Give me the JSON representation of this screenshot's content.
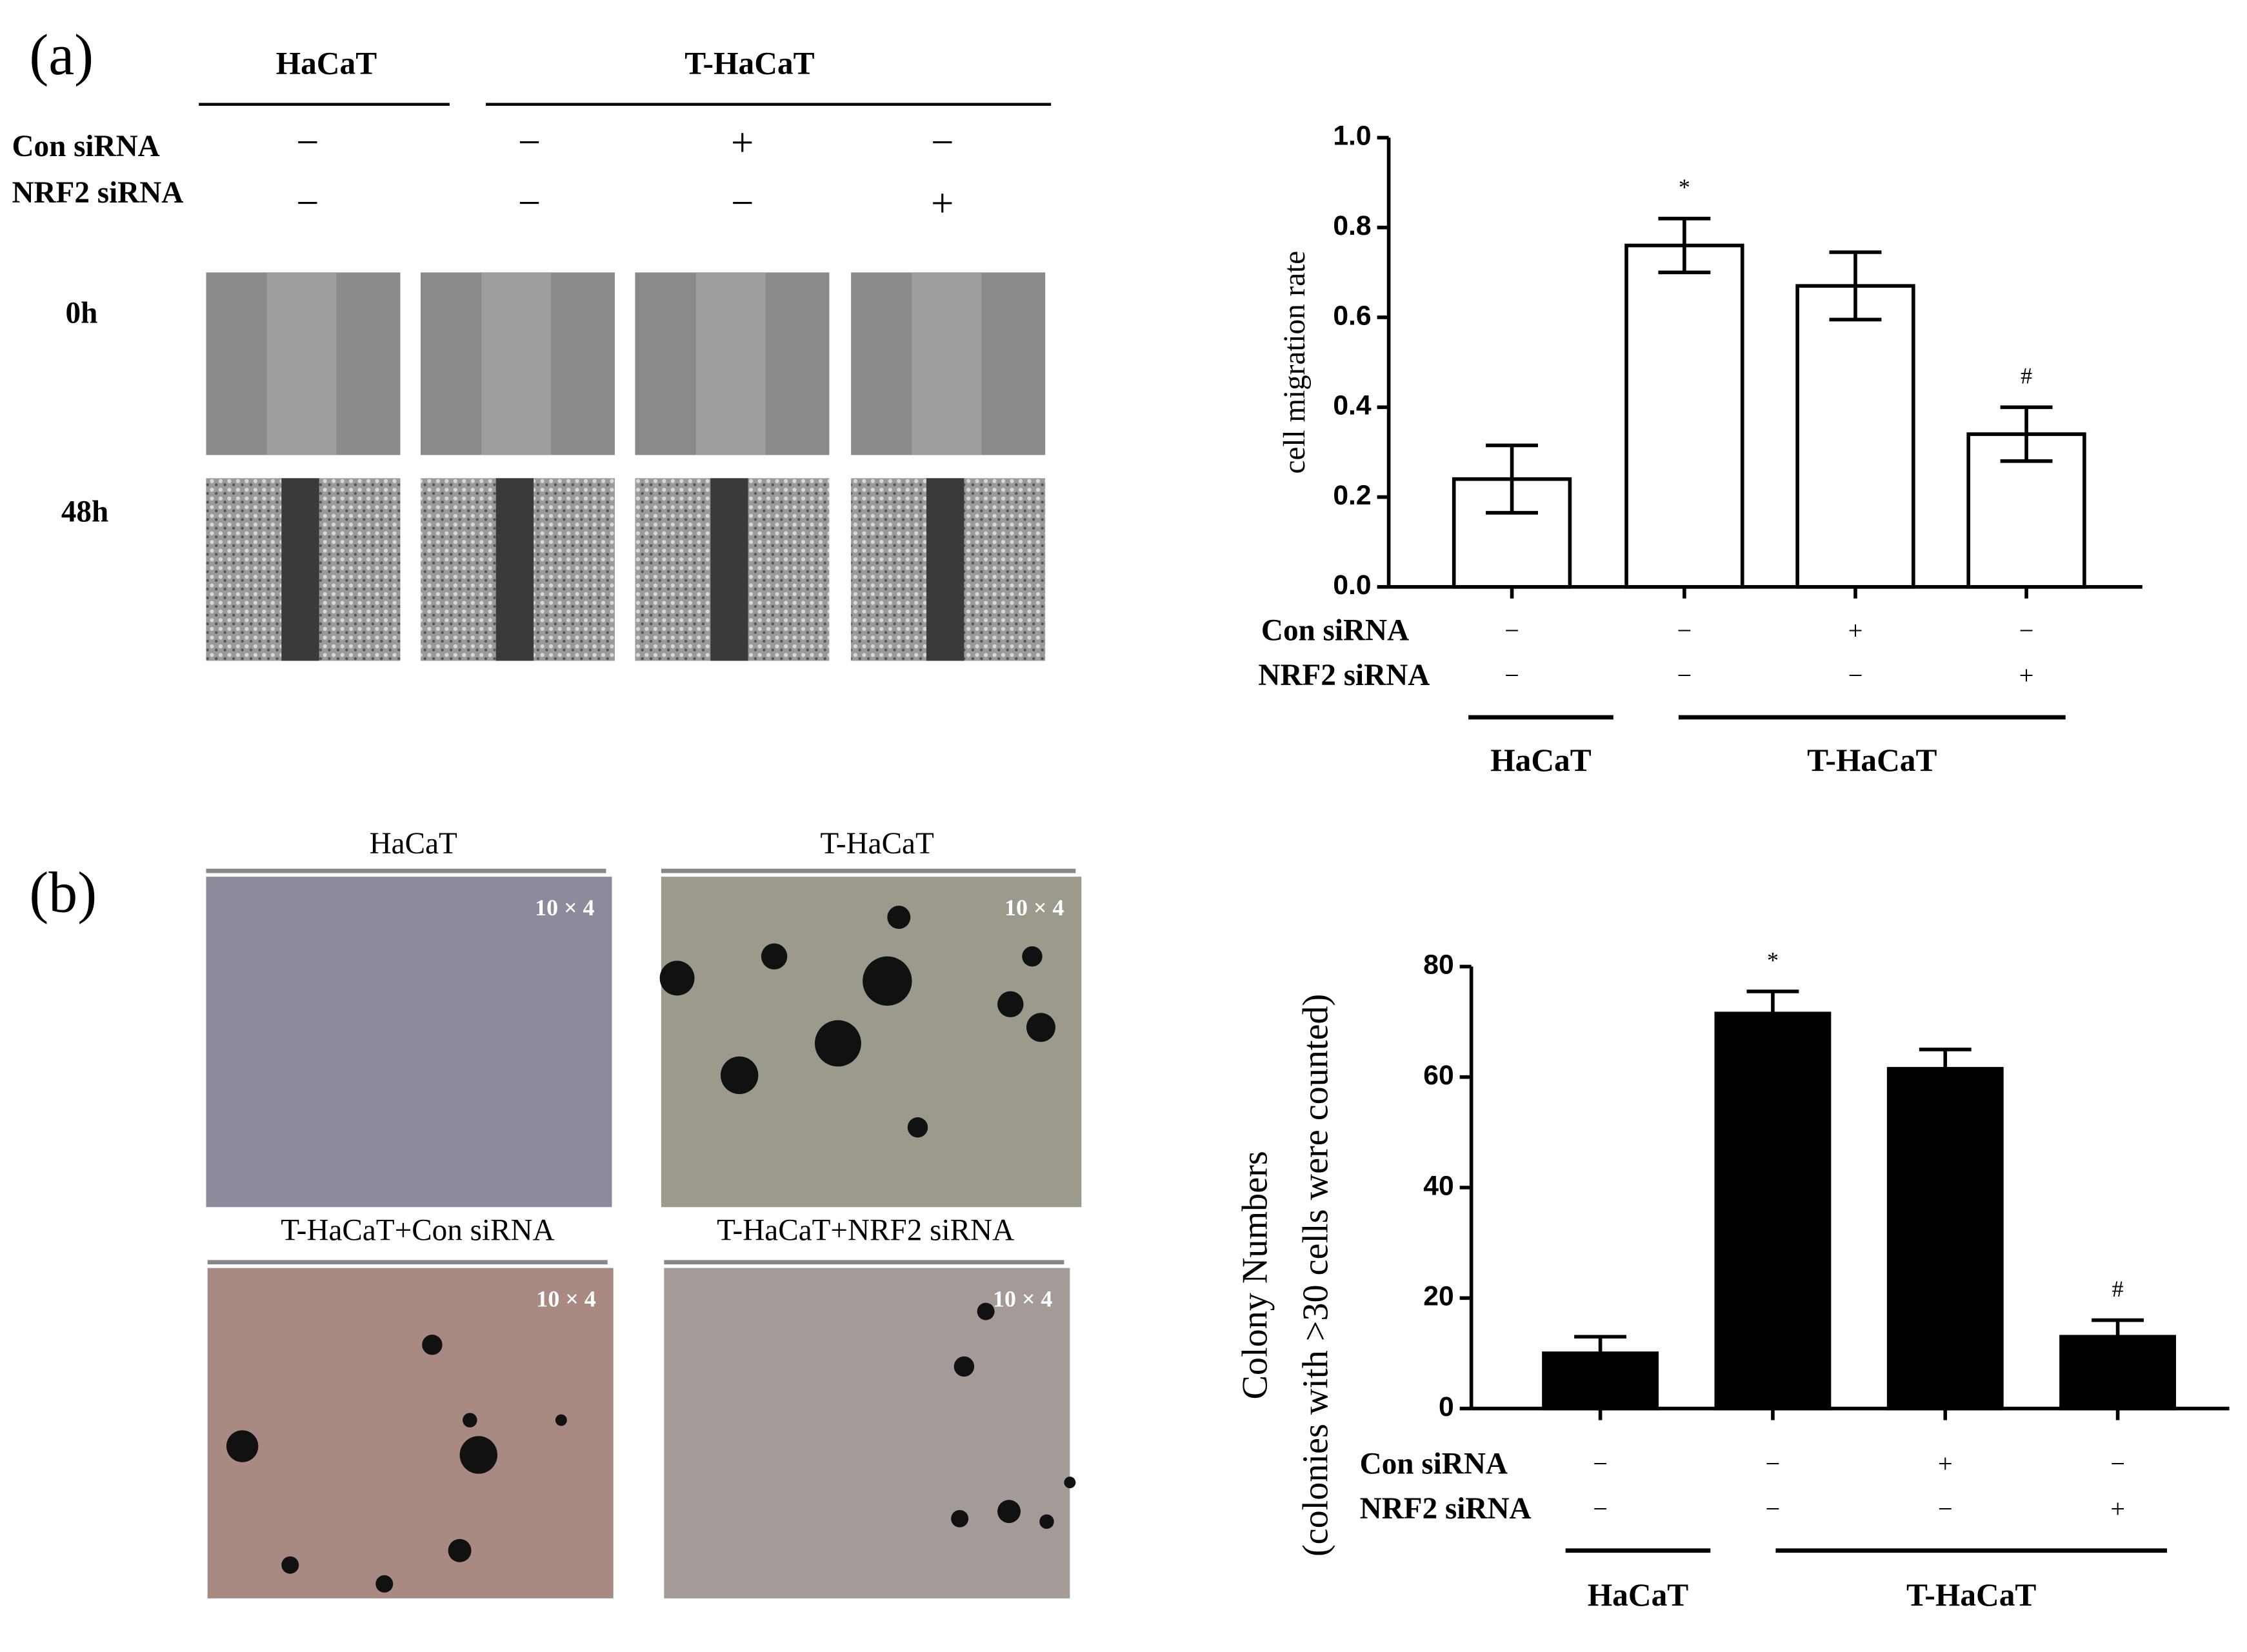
{
  "panels": {
    "a": {
      "label": "(a)",
      "groups": [
        "HaCaT",
        "T-HaCaT"
      ],
      "conditions": [
        {
          "name": "Con siRNA",
          "signs": [
            "−",
            "−",
            "+",
            "−"
          ]
        },
        {
          "name": "NRF2 siRNA",
          "signs": [
            "−",
            "−",
            "−",
            "+"
          ]
        }
      ],
      "times": [
        "0h",
        "48h"
      ]
    },
    "b": {
      "label": "(b)",
      "image_titles": [
        "HaCaT",
        "T-HaCaT",
        "T-HaCaT+Con siRNA",
        "T-HaCaT+NRF2 siRNA"
      ],
      "magnification": "10 × 4"
    }
  },
  "chart_data": [
    {
      "type": "bar",
      "y_label": "cell migration rate",
      "categories": [
        null,
        null,
        null,
        null
      ],
      "values": [
        0.24,
        0.76,
        0.67,
        0.34
      ],
      "errors": [
        0.075,
        0.06,
        0.075,
        0.06
      ],
      "annotations": [
        null,
        "*",
        null,
        "#"
      ],
      "color": "#ffffff",
      "edge_color": "#000000",
      "ylim": [
        0,
        1
      ],
      "yticks": [
        {
          "value": 0,
          "label": "0.0"
        },
        0.2,
        0.4,
        0.6,
        0.8,
        {
          "value": 1,
          "label": "1.0"
        }
      ],
      "conditions": [
        {
          "name": "Con siRNA",
          "signs": [
            "−",
            "−",
            "+",
            "−"
          ]
        },
        {
          "name": "NRF2 siRNA",
          "signs": [
            "−",
            "−",
            "−",
            "+"
          ]
        }
      ],
      "groups": [
        "HaCaT",
        "T-HaCaT"
      ]
    },
    {
      "type": "bar",
      "y_label": [
        "Colony Numbers",
        "(colonies with >30 cells were counted)"
      ],
      "categories": [
        null,
        null,
        null,
        null
      ],
      "values": [
        10,
        71.5,
        61.5,
        13
      ],
      "errors": [
        3,
        4,
        3.5,
        3
      ],
      "annotations": [
        null,
        "*",
        null,
        "#"
      ],
      "color": "#000000",
      "edge_color": "#000000",
      "ylim": [
        0,
        80
      ],
      "yticks": [
        0,
        20,
        40,
        60,
        80
      ],
      "conditions": [
        {
          "name": "Con siRNA",
          "signs": [
            "−",
            "−",
            "+",
            "−"
          ]
        },
        {
          "name": "NRF2 siRNA",
          "signs": [
            "−",
            "−",
            "−",
            "+"
          ]
        }
      ],
      "groups": [
        "HaCaT",
        "T-HaCaT"
      ]
    }
  ]
}
